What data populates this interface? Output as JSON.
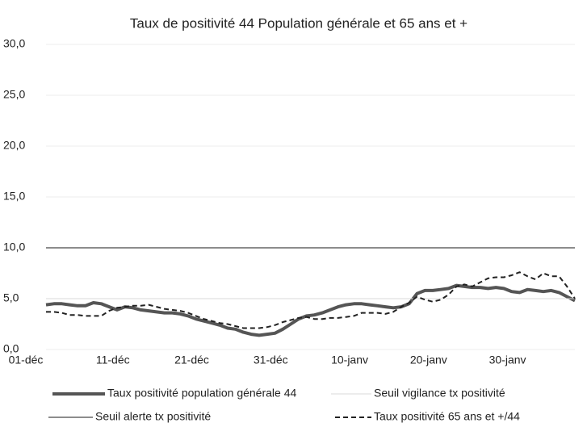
{
  "chart_data": {
    "type": "line",
    "title": "Taux de positivité 44 Population générale et 65 ans et +",
    "categories": [
      "01-déc",
      null,
      null,
      null,
      null,
      null,
      null,
      null,
      null,
      null,
      "11-déc",
      null,
      null,
      null,
      null,
      null,
      null,
      null,
      null,
      null,
      "21-déc",
      null,
      null,
      null,
      null,
      null,
      null,
      null,
      null,
      null,
      "31-déc",
      null,
      null,
      null,
      null,
      null,
      null,
      null,
      null,
      null,
      "10-janv",
      null,
      null,
      null,
      null,
      null,
      null,
      null,
      null,
      null,
      "20-janv",
      null,
      null,
      null,
      null,
      null,
      null,
      null,
      null,
      null,
      "30-janv",
      null,
      null,
      null,
      null,
      null,
      null,
      null
    ],
    "ylim": [
      0,
      30
    ],
    "yticks": [
      {
        "value": 0,
        "label": "0,0"
      },
      {
        "value": 5,
        "label": "5,0"
      },
      {
        "value": 10,
        "label": "10,0"
      },
      {
        "value": 15,
        "label": "15,0"
      },
      {
        "value": 20,
        "label": "20,0"
      },
      {
        "value": 25,
        "label": "25,0"
      },
      {
        "value": 30,
        "label": "30,0"
      }
    ],
    "grid": true,
    "series": [
      {
        "name": "Taux positivité population générale 44",
        "color": "#555555",
        "width": 4,
        "dash": false,
        "values": [
          4.4,
          4.5,
          4.5,
          4.4,
          4.3,
          4.3,
          4.6,
          4.5,
          4.2,
          3.9,
          4.2,
          4.1,
          3.9,
          3.8,
          3.7,
          3.6,
          3.6,
          3.5,
          3.3,
          3.0,
          2.8,
          2.6,
          2.4,
          2.1,
          2.0,
          1.7,
          1.5,
          1.4,
          1.5,
          1.6,
          2.0,
          2.5,
          3.0,
          3.3,
          3.4,
          3.6,
          3.9,
          4.2,
          4.4,
          4.5,
          4.5,
          4.4,
          4.3,
          4.2,
          4.1,
          4.2,
          4.5,
          5.5,
          5.8,
          5.8,
          5.9,
          6.0,
          6.3,
          6.2,
          6.1,
          6.1,
          6.0,
          6.1,
          6.0,
          5.7,
          5.6,
          5.9,
          5.8,
          5.7,
          5.8,
          5.6,
          5.2,
          4.8
        ]
      },
      {
        "name": "Seuil vigilance tx positivité",
        "color": "#d9d9d9",
        "width": 1,
        "dash": false,
        "values": [
          5,
          5,
          5,
          5,
          5,
          5,
          5,
          5,
          5,
          5,
          5,
          5,
          5,
          5,
          5,
          5,
          5,
          5,
          5,
          5,
          5,
          5,
          5,
          5,
          5,
          5,
          5,
          5,
          5,
          5,
          5,
          5,
          5,
          5,
          5,
          5,
          5,
          5,
          5,
          5,
          5,
          5,
          5,
          5,
          5,
          5,
          5,
          5,
          5,
          5,
          5,
          5,
          5,
          5,
          5,
          5,
          5,
          5,
          5,
          5,
          5,
          5,
          5,
          5,
          5,
          5,
          5,
          5
        ]
      },
      {
        "name": "Seuil alerte tx positivité",
        "color": "#666666",
        "width": 1.5,
        "dash": false,
        "values": [
          10,
          10,
          10,
          10,
          10,
          10,
          10,
          10,
          10,
          10,
          10,
          10,
          10,
          10,
          10,
          10,
          10,
          10,
          10,
          10,
          10,
          10,
          10,
          10,
          10,
          10,
          10,
          10,
          10,
          10,
          10,
          10,
          10,
          10,
          10,
          10,
          10,
          10,
          10,
          10,
          10,
          10,
          10,
          10,
          10,
          10,
          10,
          10,
          10,
          10,
          10,
          10,
          10,
          10,
          10,
          10,
          10,
          10,
          10,
          10,
          10,
          10,
          10,
          10,
          10,
          10,
          10,
          10
        ]
      },
      {
        "name": "Taux positivité 65 ans et +/44",
        "color": "#222222",
        "width": 2,
        "dash": true,
        "values": [
          3.7,
          3.7,
          3.6,
          3.4,
          3.4,
          3.3,
          3.3,
          3.3,
          3.8,
          4.1,
          4.2,
          4.3,
          4.3,
          4.4,
          4.2,
          4.0,
          3.9,
          3.8,
          3.6,
          3.3,
          3.0,
          2.8,
          2.6,
          2.5,
          2.3,
          2.1,
          2.1,
          2.1,
          2.2,
          2.4,
          2.7,
          2.9,
          3.1,
          3.2,
          3.0,
          3.0,
          3.1,
          3.1,
          3.2,
          3.3,
          3.6,
          3.6,
          3.6,
          3.5,
          3.7,
          4.2,
          4.6,
          5.2,
          4.9,
          4.7,
          4.9,
          5.4,
          6.2,
          6.4,
          6.2,
          6.6,
          7.0,
          7.1,
          7.1,
          7.3,
          7.6,
          7.2,
          6.9,
          7.5,
          7.2,
          7.2,
          6.2,
          5.0
        ]
      }
    ]
  }
}
